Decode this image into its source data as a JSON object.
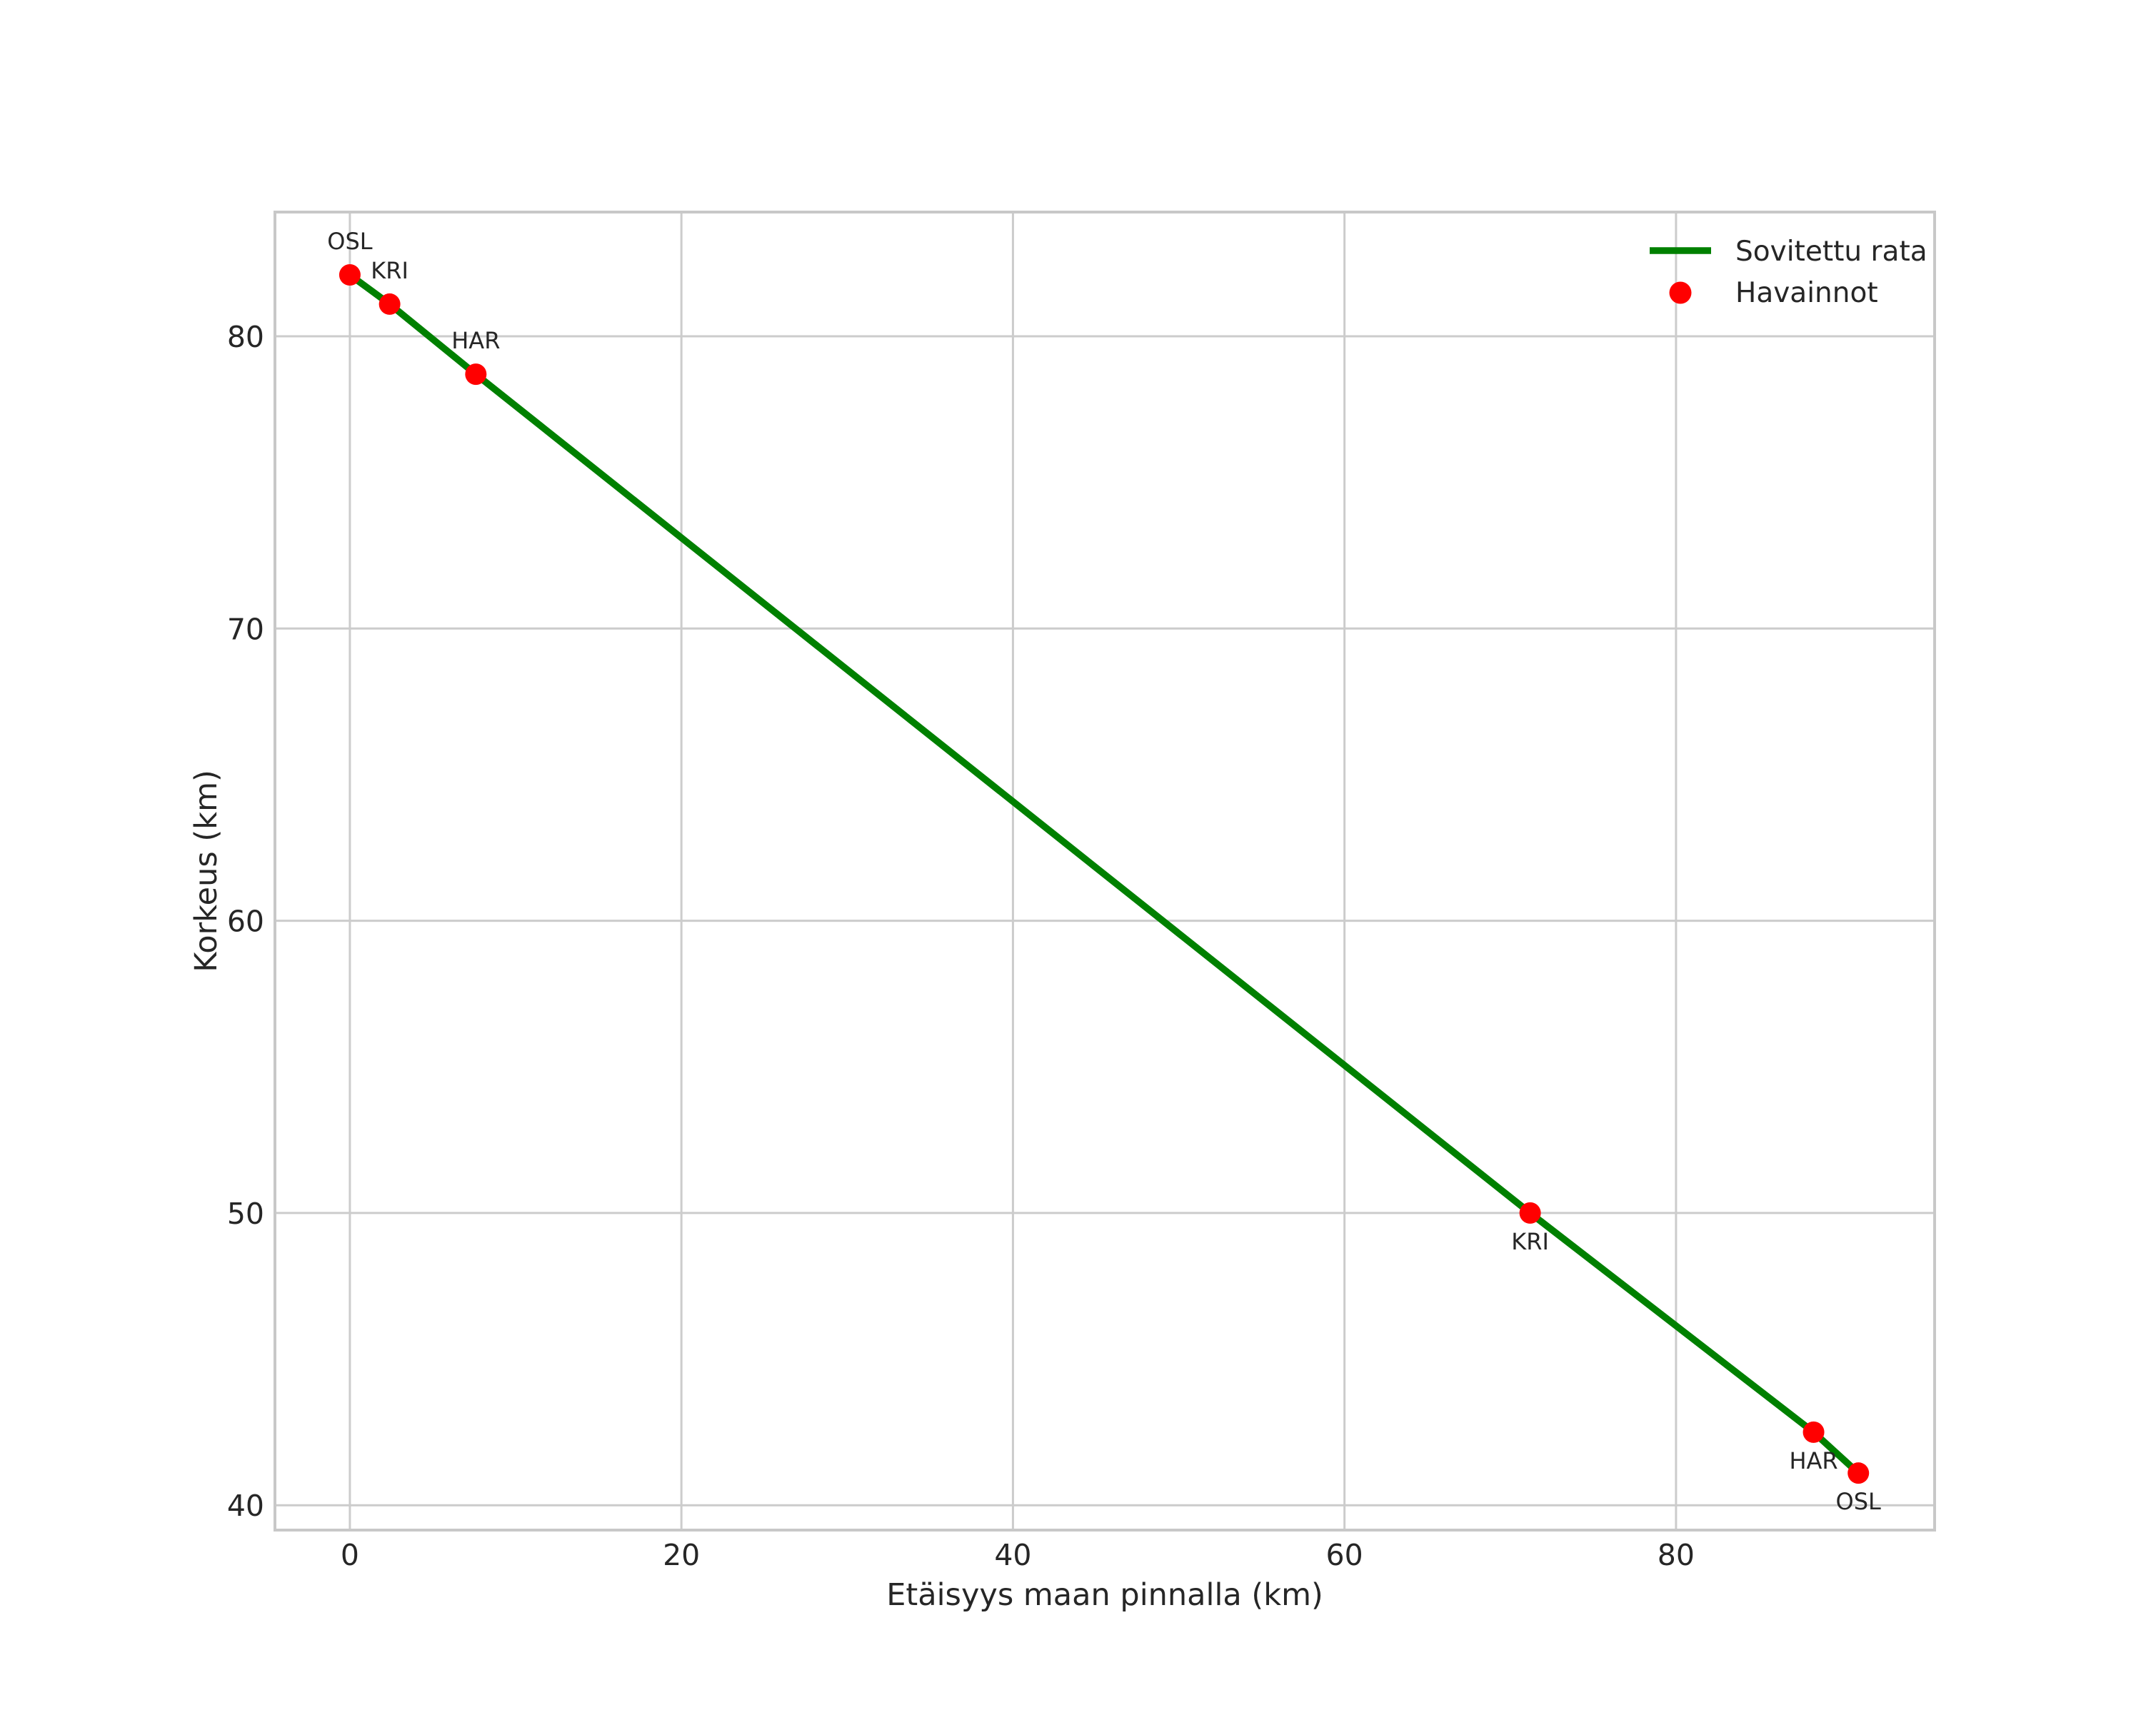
{
  "chart_data": {
    "type": "scatter",
    "title": "",
    "xlabel": "Etäisyys maan pinnalla (km)",
    "ylabel": "Korkeus (km)",
    "xlim": [
      -4.52,
      95.6
    ],
    "ylim": [
      39.15,
      84.25
    ],
    "xticks": [
      0,
      20,
      40,
      60,
      80
    ],
    "yticks": [
      40,
      50,
      60,
      70,
      80
    ],
    "grid": true,
    "background_color": "#ffffff",
    "grid_color": "#cccccc",
    "spine_color": "#c8c8c8",
    "text_color": "#262626",
    "legend": {
      "location": "upper right",
      "frame": false,
      "entries": [
        {
          "label": "Sovitettu rata",
          "swatch": "line",
          "color": "#008000"
        },
        {
          "label": "Havainnot",
          "swatch": "dot",
          "color": "#ff0000"
        }
      ]
    },
    "series": [
      {
        "name": "Sovitettu rata",
        "type": "line",
        "color": "#008000",
        "line_width": 9.5,
        "points": [
          [
            0,
            82.1
          ],
          [
            2.4,
            81.1
          ],
          [
            7.6,
            78.7
          ],
          [
            71.2,
            50.0
          ],
          [
            88.3,
            42.5
          ],
          [
            91.0,
            41.1
          ]
        ]
      },
      {
        "name": "Havainnot",
        "type": "scatter",
        "color": "#ff0000",
        "marker_radius": 15,
        "points": [
          {
            "station": "OSL",
            "x": 0,
            "y": 82.1,
            "label_position": "above"
          },
          {
            "station": "KRI",
            "x": 2.4,
            "y": 81.1,
            "label_position": "above"
          },
          {
            "station": "HAR",
            "x": 7.6,
            "y": 78.7,
            "label_position": "above"
          },
          {
            "station": "KRI",
            "x": 71.2,
            "y": 50.0,
            "label_position": "below"
          },
          {
            "station": "HAR",
            "x": 88.3,
            "y": 42.5,
            "label_position": "below"
          },
          {
            "station": "OSL",
            "x": 91.0,
            "y": 41.1,
            "label_position": "below"
          }
        ]
      }
    ]
  }
}
